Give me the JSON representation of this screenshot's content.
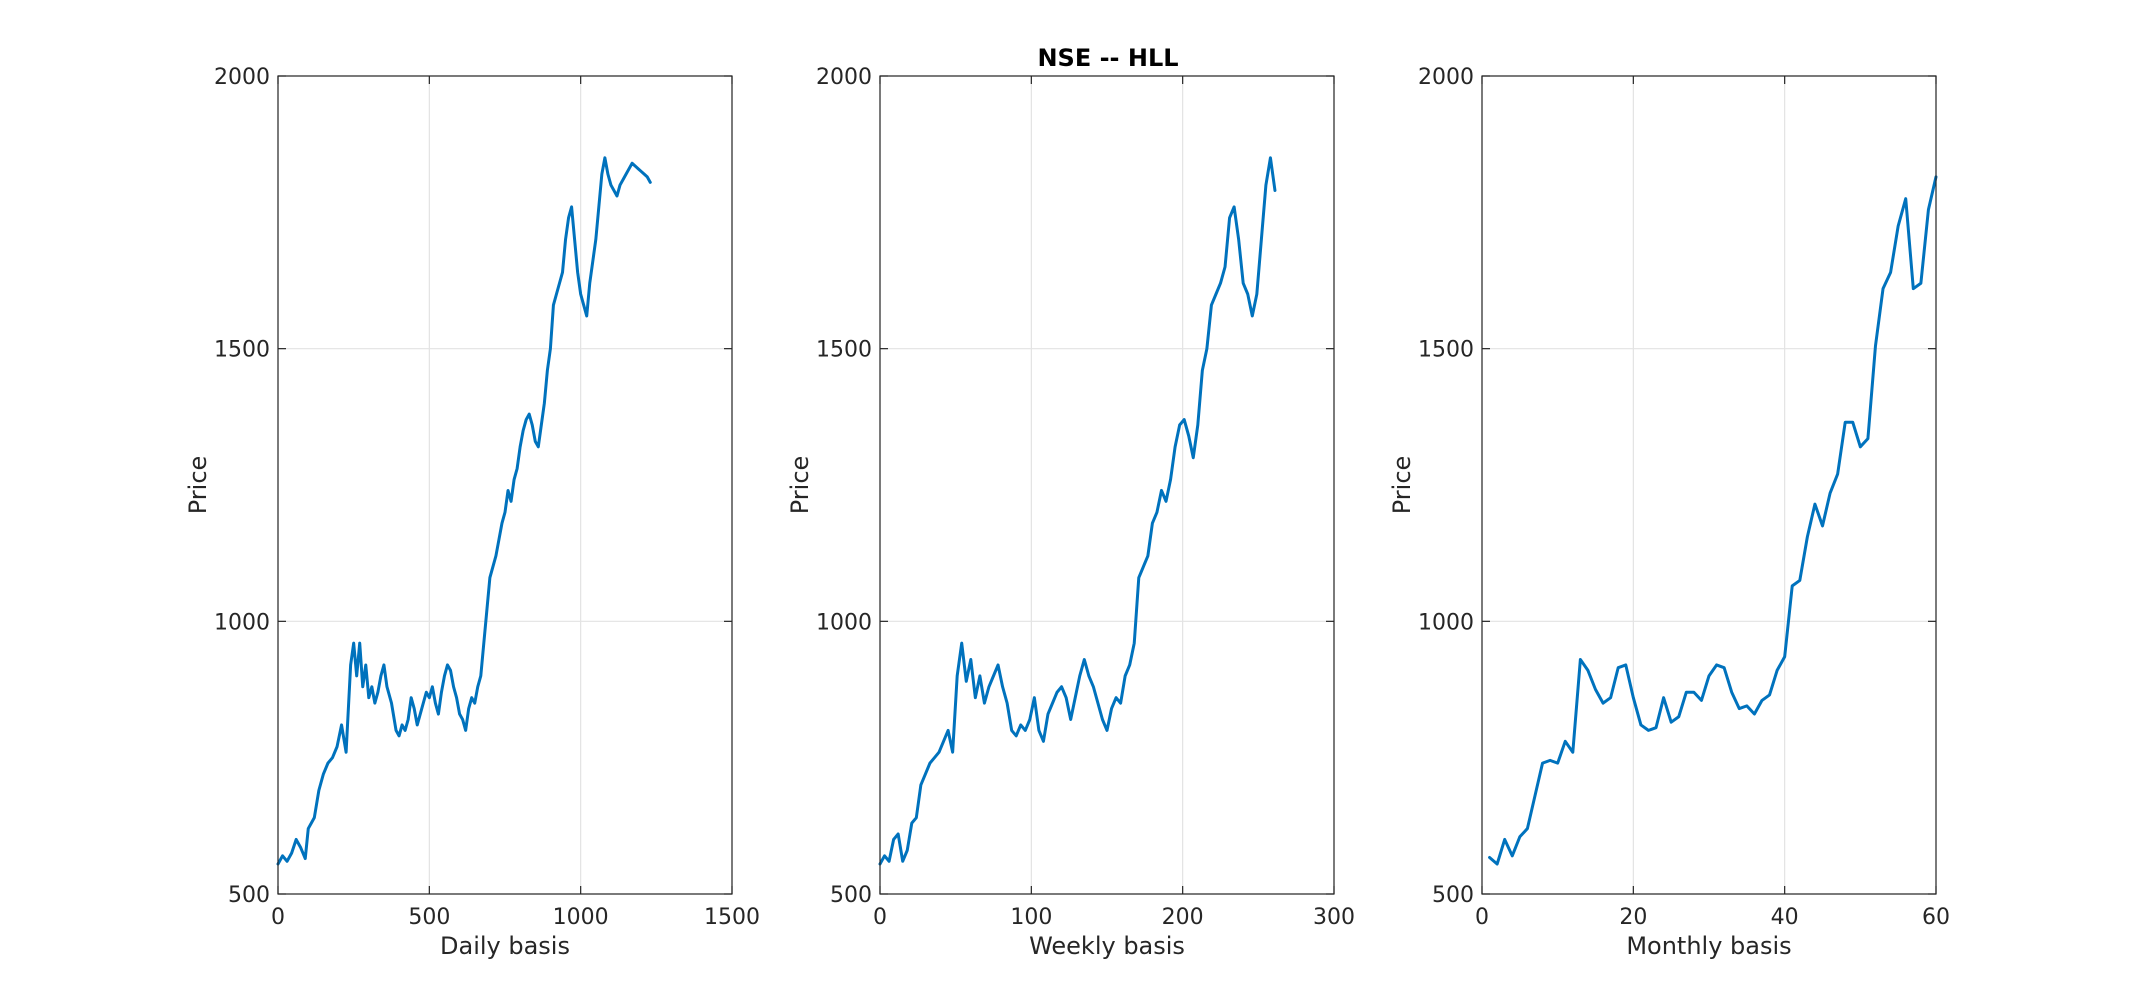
{
  "figure": {
    "title": "NSE -- HLL",
    "line_color": "#0072BD"
  },
  "chart_data": [
    {
      "type": "line",
      "title": "",
      "xlabel": "Daily basis",
      "ylabel": "Price",
      "xlim": [
        0,
        1500
      ],
      "ylim": [
        500,
        2000
      ],
      "xticks": [
        0,
        500,
        1000,
        1500
      ],
      "yticks": [
        500,
        1000,
        1500,
        2000
      ],
      "grid": true,
      "series": [
        {
          "x": [
            0,
            15,
            30,
            45,
            60,
            75,
            90,
            100,
            110,
            120,
            135,
            150,
            165,
            180,
            195,
            210,
            225,
            240,
            250,
            260,
            270,
            280,
            290,
            300,
            310,
            320,
            330,
            340,
            350,
            360,
            375,
            390,
            400,
            410,
            420,
            430,
            440,
            450,
            460,
            470,
            480,
            490,
            500,
            510,
            520,
            530,
            540,
            550,
            560,
            570,
            580,
            590,
            600,
            610,
            620,
            630,
            640,
            650,
            660,
            670,
            680,
            690,
            700,
            710,
            720,
            730,
            740,
            750,
            760,
            770,
            780,
            790,
            800,
            810,
            820,
            830,
            840,
            850,
            860,
            870,
            880,
            890,
            900,
            910,
            920,
            930,
            940,
            950,
            960,
            970,
            980,
            990,
            1000,
            1010,
            1020,
            1030,
            1040,
            1050,
            1060,
            1070,
            1080,
            1090,
            1100,
            1110,
            1120,
            1130,
            1140,
            1150,
            1160,
            1170,
            1180,
            1190,
            1200,
            1210,
            1220,
            1225,
            1230
          ],
          "y": [
            555,
            570,
            560,
            575,
            600,
            585,
            565,
            620,
            630,
            640,
            690,
            720,
            740,
            750,
            770,
            810,
            760,
            920,
            960,
            900,
            960,
            880,
            920,
            860,
            880,
            850,
            870,
            900,
            920,
            880,
            850,
            800,
            790,
            810,
            800,
            820,
            860,
            840,
            810,
            830,
            850,
            870,
            860,
            880,
            850,
            830,
            870,
            900,
            920,
            910,
            880,
            860,
            830,
            820,
            800,
            840,
            860,
            850,
            880,
            900,
            960,
            1020,
            1080,
            1100,
            1120,
            1150,
            1180,
            1200,
            1240,
            1220,
            1260,
            1280,
            1320,
            1350,
            1370,
            1380,
            1360,
            1330,
            1320,
            1360,
            1400,
            1460,
            1500,
            1580,
            1600,
            1620,
            1640,
            1700,
            1740,
            1760,
            1700,
            1640,
            1600,
            1580,
            1560,
            1620,
            1660,
            1700,
            1760,
            1820,
            1850,
            1820,
            1800,
            1790,
            1780,
            1800,
            1810,
            1820,
            1830,
            1840,
            1835,
            1830,
            1825,
            1820,
            1815,
            1810,
            1805
          ]
        }
      ]
    },
    {
      "type": "line",
      "title": "",
      "xlabel": "Weekly basis",
      "ylabel": "Price",
      "xlim": [
        0,
        300
      ],
      "ylim": [
        500,
        2000
      ],
      "xticks": [
        0,
        100,
        200,
        300
      ],
      "yticks": [
        500,
        1000,
        1500,
        2000
      ],
      "grid": true,
      "series": [
        {
          "x": [
            0,
            3,
            6,
            9,
            12,
            15,
            18,
            21,
            24,
            27,
            30,
            33,
            36,
            39,
            42,
            45,
            48,
            51,
            54,
            57,
            60,
            63,
            66,
            69,
            72,
            75,
            78,
            81,
            84,
            87,
            90,
            93,
            96,
            99,
            102,
            105,
            108,
            111,
            114,
            117,
            120,
            123,
            126,
            129,
            132,
            135,
            138,
            141,
            144,
            147,
            150,
            153,
            156,
            159,
            162,
            165,
            168,
            171,
            174,
            177,
            180,
            183,
            186,
            189,
            192,
            195,
            198,
            201,
            204,
            207,
            210,
            213,
            216,
            219,
            222,
            225,
            228,
            231,
            234,
            237,
            240,
            243,
            246,
            249,
            252,
            255,
            258,
            261
          ],
          "y": [
            555,
            570,
            560,
            600,
            610,
            560,
            580,
            630,
            640,
            700,
            720,
            740,
            750,
            760,
            780,
            800,
            760,
            900,
            960,
            890,
            930,
            860,
            900,
            850,
            880,
            900,
            920,
            880,
            850,
            800,
            790,
            810,
            800,
            820,
            860,
            800,
            780,
            830,
            850,
            870,
            880,
            860,
            820,
            860,
            900,
            930,
            900,
            880,
            850,
            820,
            800,
            840,
            860,
            850,
            900,
            920,
            960,
            1080,
            1100,
            1120,
            1180,
            1200,
            1240,
            1220,
            1260,
            1320,
            1360,
            1370,
            1340,
            1300,
            1360,
            1460,
            1500,
            1580,
            1600,
            1620,
            1650,
            1740,
            1760,
            1700,
            1620,
            1600,
            1560,
            1600,
            1700,
            1800,
            1850,
            1790
          ]
        }
      ]
    },
    {
      "type": "line",
      "title": "",
      "xlabel": "Monthly basis",
      "ylabel": "Price",
      "xlim": [
        0,
        60
      ],
      "ylim": [
        500,
        2000
      ],
      "xticks": [
        0,
        20,
        40,
        60
      ],
      "yticks": [
        500,
        1000,
        1500,
        2000
      ],
      "grid": true,
      "series": [
        {
          "x": [
            1,
            2,
            3,
            4,
            5,
            6,
            7,
            8,
            9,
            10,
            11,
            12,
            13,
            14,
            15,
            16,
            17,
            18,
            19,
            20,
            21,
            22,
            23,
            24,
            25,
            26,
            27,
            28,
            29,
            30,
            31,
            32,
            33,
            34,
            35,
            36,
            37,
            38,
            39,
            40,
            41,
            42,
            43,
            44,
            45,
            46,
            47,
            48,
            49,
            50,
            51,
            52,
            53,
            54,
            55,
            56,
            57,
            58,
            59,
            60
          ],
          "y": [
            567,
            555,
            600,
            570,
            605,
            620,
            680,
            740,
            745,
            740,
            780,
            760,
            930,
            910,
            875,
            850,
            860,
            915,
            920,
            860,
            810,
            800,
            805,
            860,
            815,
            825,
            870,
            870,
            855,
            900,
            920,
            915,
            870,
            840,
            845,
            830,
            855,
            865,
            910,
            935,
            1065,
            1075,
            1155,
            1215,
            1175,
            1235,
            1270,
            1365,
            1365,
            1320,
            1335,
            1505,
            1610,
            1640,
            1725,
            1775,
            1610,
            1620,
            1755,
            1815
          ]
        }
      ]
    }
  ]
}
